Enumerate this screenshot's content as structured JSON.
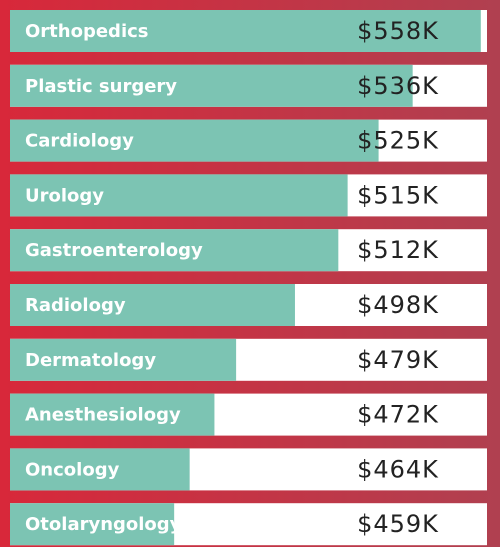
{
  "chart_data": {
    "type": "bar",
    "orientation": "horizontal",
    "categories": [
      "Orthopedics",
      "Plastic surgery",
      "Cardiology",
      "Urology",
      "Gastroenterology",
      "Radiology",
      "Dermatology",
      "Anesthesiology",
      "Oncology",
      "Otolaryngology"
    ],
    "values": [
      558,
      536,
      525,
      515,
      512,
      498,
      479,
      472,
      464,
      459
    ],
    "value_labels": [
      "$558K",
      "$536K",
      "$525K",
      "$515K",
      "$512K",
      "$498K",
      "$479K",
      "$472K",
      "$464K",
      "$459K"
    ],
    "xlim": [
      406,
      560
    ],
    "color": "#7cc4b3"
  }
}
